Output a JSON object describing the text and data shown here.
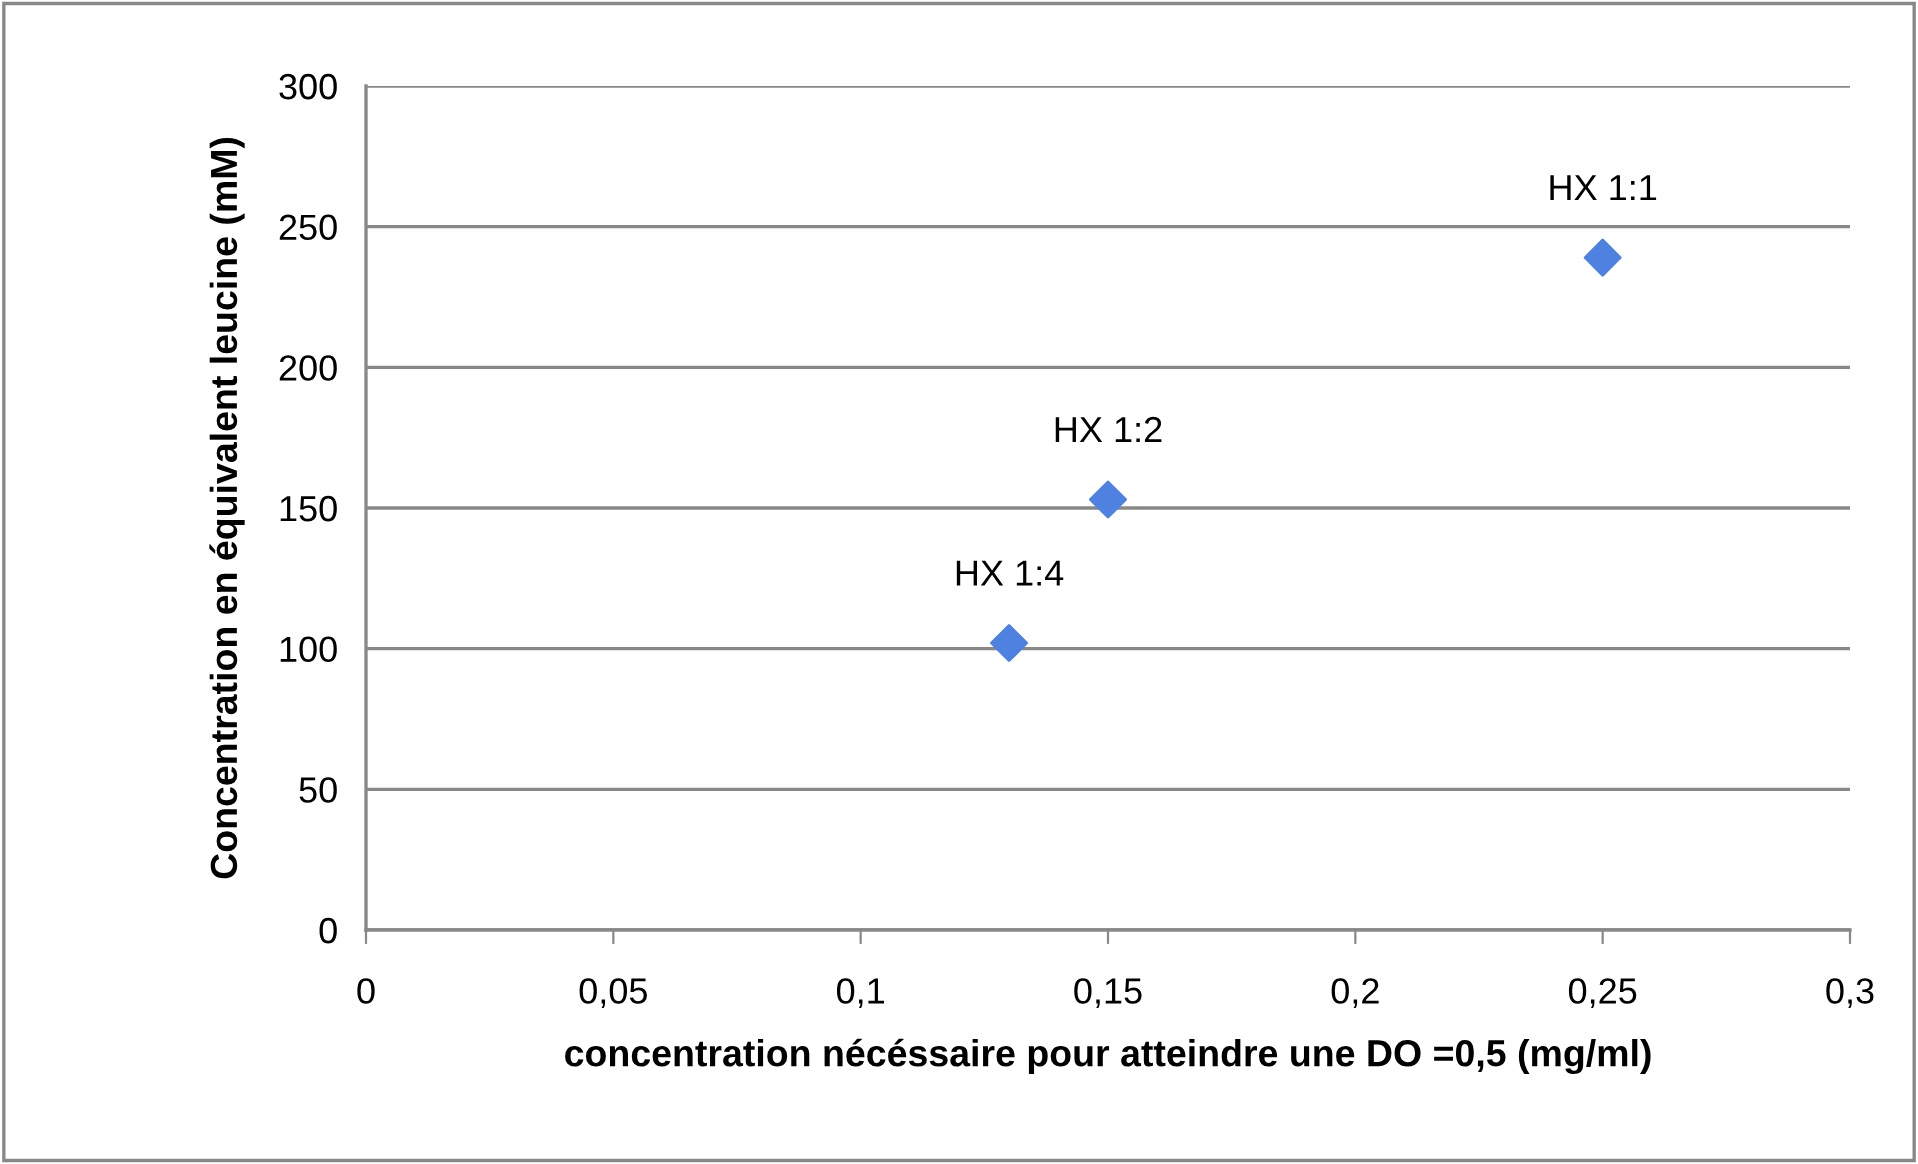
{
  "chart_data": {
    "type": "scatter",
    "xlabel": "concentration nécéssaire pour atteindre une DO =0,5 (mg/ml)",
    "ylabel": "Concentration en équivalent leucine (mM)",
    "x": [
      0.13,
      0.15,
      0.25
    ],
    "series": [
      {
        "color": "#4f81e0",
        "values": [
          102,
          153,
          239
        ]
      }
    ],
    "xlim": [
      0,
      0.3
    ],
    "xticks": [
      0,
      {
        "value": 0.05,
        "label": "0,05"
      },
      {
        "value": 0.1,
        "label": "0,1"
      },
      {
        "value": 0.15,
        "label": "0,15"
      },
      {
        "value": 0.2,
        "label": "0,2"
      },
      {
        "value": 0.25,
        "label": "0,25"
      },
      {
        "value": 0.3,
        "label": "0,3"
      }
    ],
    "ylim": [
      0,
      300
    ],
    "yticks": [
      0,
      50,
      100,
      150,
      200,
      250,
      300
    ],
    "grid": "y",
    "marker": "diamond",
    "annotations": [
      {
        "text": "HX 1:4",
        "x": 0.13,
        "y": 102
      },
      {
        "text": "HX 1:2",
        "x": 0.15,
        "y": 153
      },
      {
        "text": "HX 1:1",
        "x": 0.25,
        "y": 239
      }
    ]
  }
}
